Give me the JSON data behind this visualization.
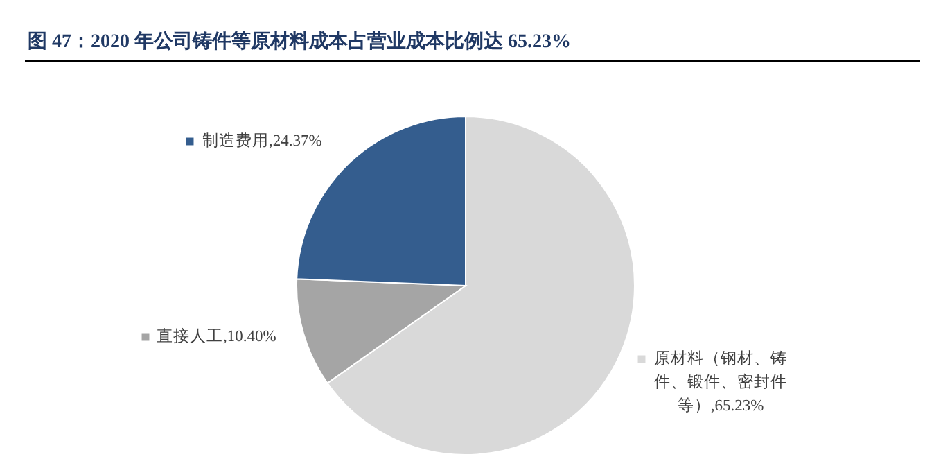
{
  "chart_data": {
    "type": "pie",
    "title": "图 47：2020 年公司铸件等原材料成本占营业成本比例达 65.23%",
    "categories": [
      "原材料（钢材、铸件、锻件、密封件等）",
      "直接人工",
      "制造费用"
    ],
    "values": [
      65.23,
      10.4,
      24.37
    ],
    "colors": [
      "#d9d9d9",
      "#a5a5a5",
      "#345d8e"
    ],
    "value_labels": [
      "65.23%",
      "10.40%",
      "24.37%"
    ],
    "legend": "left"
  }
}
